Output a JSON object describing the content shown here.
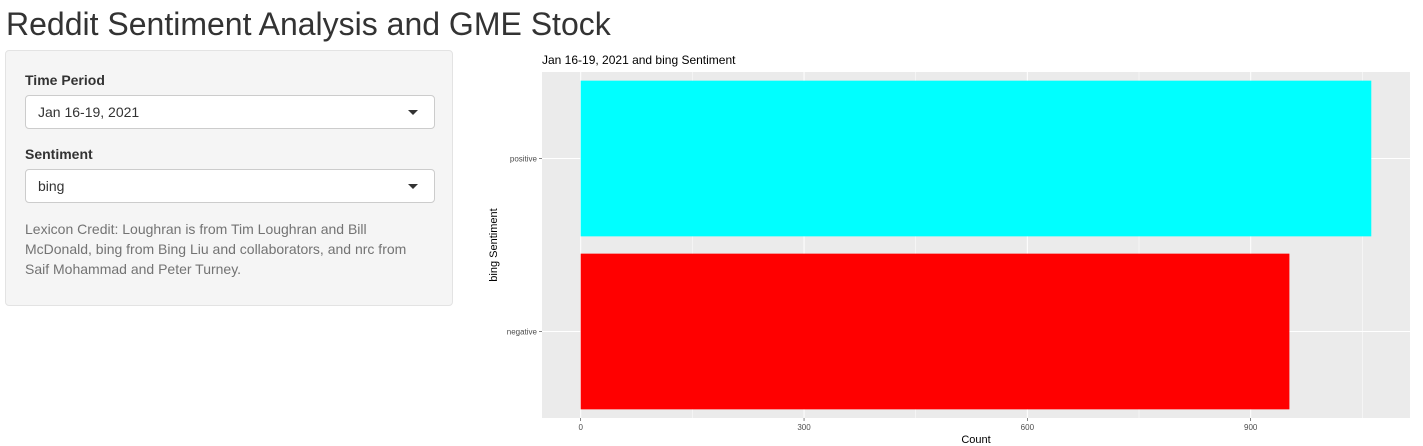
{
  "page": {
    "title": "Reddit Sentiment Analysis and GME Stock"
  },
  "sidebar": {
    "time_period": {
      "label": "Time Period",
      "value": "Jan 16-19, 2021"
    },
    "sentiment": {
      "label": "Sentiment",
      "value": "bing"
    },
    "help_text": "Lexicon Credit: Loughran is from Tim Loughran and Bill McDonald, bing from Bing Liu and collaborators, and nrc from Saif Mohammad and Peter Turney."
  },
  "chart_data": {
    "type": "bar",
    "orientation": "horizontal",
    "title": "Jan 16-19, 2021 and bing Sentiment",
    "xlabel": "Count",
    "ylabel": "bing Sentiment",
    "categories": [
      "negative",
      "positive"
    ],
    "values": [
      952,
      1062
    ],
    "colors": [
      "#ff0000",
      "#00ffff"
    ],
    "xticks": [
      0,
      300,
      600,
      900
    ],
    "xlim": [
      -52,
      1114
    ],
    "grid": true,
    "panel_background": "#ebebeb",
    "gridline_color": "#ffffff"
  }
}
